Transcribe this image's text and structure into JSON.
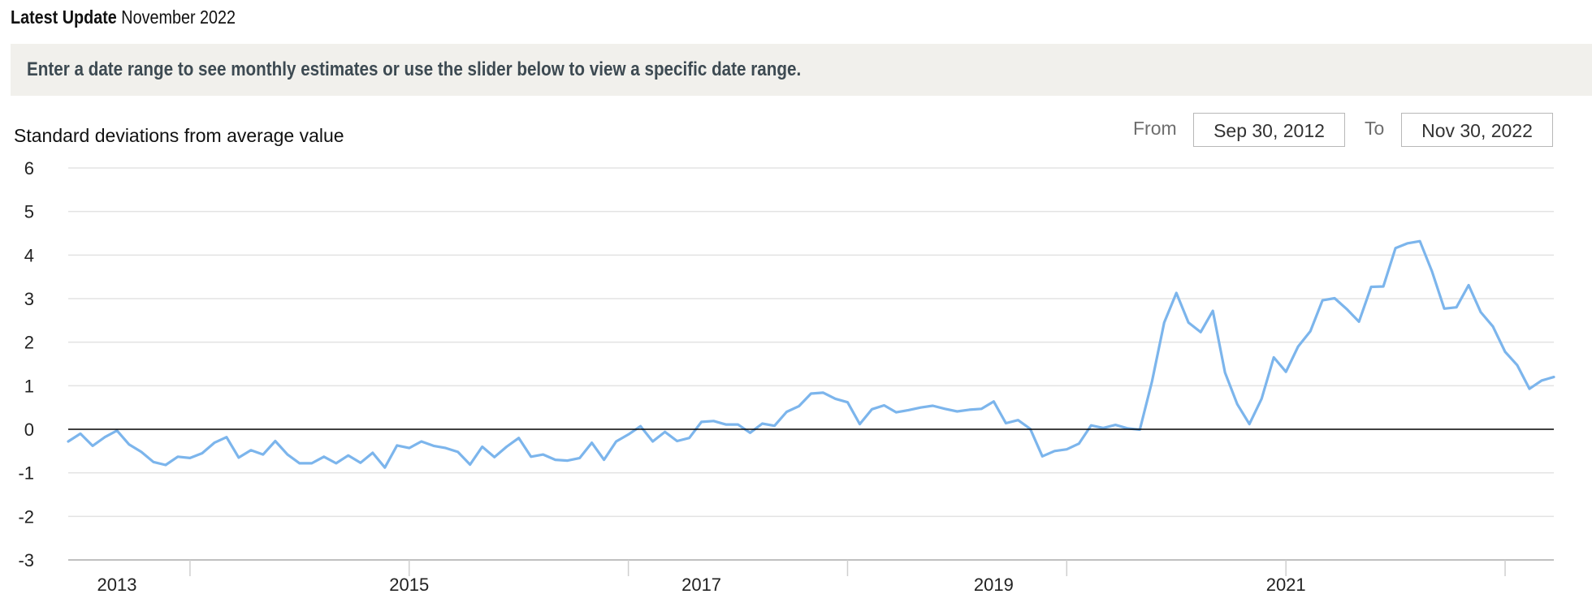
{
  "header": {
    "update_label": "Latest Update",
    "update_value": "November 2022"
  },
  "banner": {
    "text": "Enter a date range to see monthly estimates or use the slider below to view a specific date range."
  },
  "range": {
    "from_label": "From",
    "from_value": "Sep 30, 2012",
    "to_label": "To",
    "to_value": "Nov 30, 2022"
  },
  "chart_data": {
    "type": "line",
    "title": "",
    "ylabel": "Standard deviations from average value",
    "xlabel": "",
    "ylim": [
      -3,
      6
    ],
    "yticks": [
      "6",
      "5",
      "4",
      "3",
      "2",
      "1",
      "0",
      "-1",
      "-2",
      "-3"
    ],
    "xticks": [
      "2013",
      "2015",
      "2017",
      "2019",
      "2021"
    ],
    "x_start": "2012-09",
    "x_end": "2022-11",
    "grid": true,
    "line_color": "#7cb5ec",
    "series": [
      {
        "values": [
          -0.28,
          -0.1,
          -0.38,
          -0.18,
          -0.03,
          -0.35,
          -0.52,
          -0.75,
          -0.82,
          -0.63,
          -0.66,
          -0.55,
          -0.31,
          -0.18,
          -0.65,
          -0.48,
          -0.58,
          -0.27,
          -0.58,
          -0.78,
          -0.78,
          -0.63,
          -0.78,
          -0.6,
          -0.77,
          -0.54,
          -0.88,
          -0.37,
          -0.43,
          -0.28,
          -0.38,
          -0.43,
          -0.52,
          -0.81,
          -0.4,
          -0.64,
          -0.4,
          -0.2,
          -0.63,
          -0.58,
          -0.7,
          -0.72,
          -0.66,
          -0.31,
          -0.7,
          -0.28,
          -0.12,
          0.07,
          -0.28,
          -0.06,
          -0.27,
          -0.2,
          0.17,
          0.19,
          0.11,
          0.11,
          -0.08,
          0.13,
          0.08,
          0.4,
          0.53,
          0.82,
          0.84,
          0.7,
          0.62,
          0.12,
          0.46,
          0.55,
          0.39,
          0.44,
          0.5,
          0.54,
          0.47,
          0.41,
          0.45,
          0.47,
          0.64,
          0.14,
          0.21,
          0.01,
          -0.62,
          -0.5,
          -0.46,
          -0.33,
          0.09,
          0.03,
          0.1,
          0.02,
          -0.01,
          1.1,
          2.45,
          3.13,
          2.45,
          2.23,
          2.72,
          1.3,
          0.58,
          0.12,
          0.7,
          1.65,
          1.32,
          1.9,
          2.25,
          2.96,
          3.01,
          2.76,
          2.47,
          3.27,
          3.28,
          4.16,
          4.27,
          4.32,
          3.62,
          2.77,
          2.8,
          3.31,
          2.69,
          2.36,
          1.78,
          1.47,
          0.93,
          1.12,
          1.2
        ]
      }
    ]
  }
}
